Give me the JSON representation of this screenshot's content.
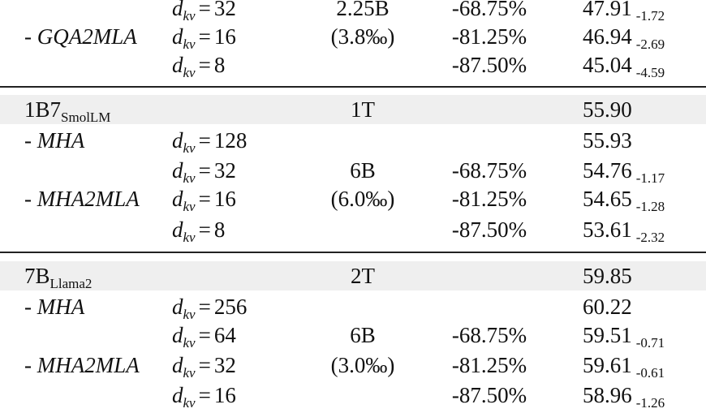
{
  "dkv_symbol": {
    "d": "d",
    "sub": "kv",
    "eq": "="
  },
  "rows": [
    {
      "dkv": "32",
      "tokens": "2.25B",
      "reduction": "-68.75%",
      "score": "47.91",
      "delta": "-1.72"
    },
    {
      "method": "- GQA2MLA",
      "dkv": "16",
      "tokens": "(3.8‰)",
      "reduction": "-81.25%",
      "score": "46.94",
      "delta": "-2.69"
    },
    {
      "dkv": "8",
      "reduction": "-87.50%",
      "score": "45.04",
      "delta": "-4.59"
    },
    {
      "model": "1B7",
      "model_sub": "SmolLM",
      "tokens": "1T",
      "score": "55.90"
    },
    {
      "method": "- MHA",
      "dkv": "128",
      "score": "55.93"
    },
    {
      "dkv": "32",
      "tokens": "6B",
      "reduction": "-68.75%",
      "score": "54.76",
      "delta": "-1.17"
    },
    {
      "method": "- MHA2MLA",
      "dkv": "16",
      "tokens": "(6.0‰)",
      "reduction": "-81.25%",
      "score": "54.65",
      "delta": "-1.28"
    },
    {
      "dkv": "8",
      "reduction": "-87.50%",
      "score": "53.61",
      "delta": "-2.32"
    },
    {
      "model": "7B",
      "model_sub": "Llama2",
      "tokens": "2T",
      "score": "59.85"
    },
    {
      "method": "- MHA",
      "dkv": "256",
      "score": "60.22"
    },
    {
      "dkv": "64",
      "tokens": "6B",
      "reduction": "-68.75%",
      "score": "59.51",
      "delta": "-0.71"
    },
    {
      "method": "- MHA2MLA",
      "dkv": "32",
      "tokens": "(3.0‰)",
      "reduction": "-81.25%",
      "score": "59.61",
      "delta": "-0.61"
    },
    {
      "dkv": "16",
      "reduction": "-87.50%",
      "score": "58.96",
      "delta": "-1.26"
    }
  ]
}
